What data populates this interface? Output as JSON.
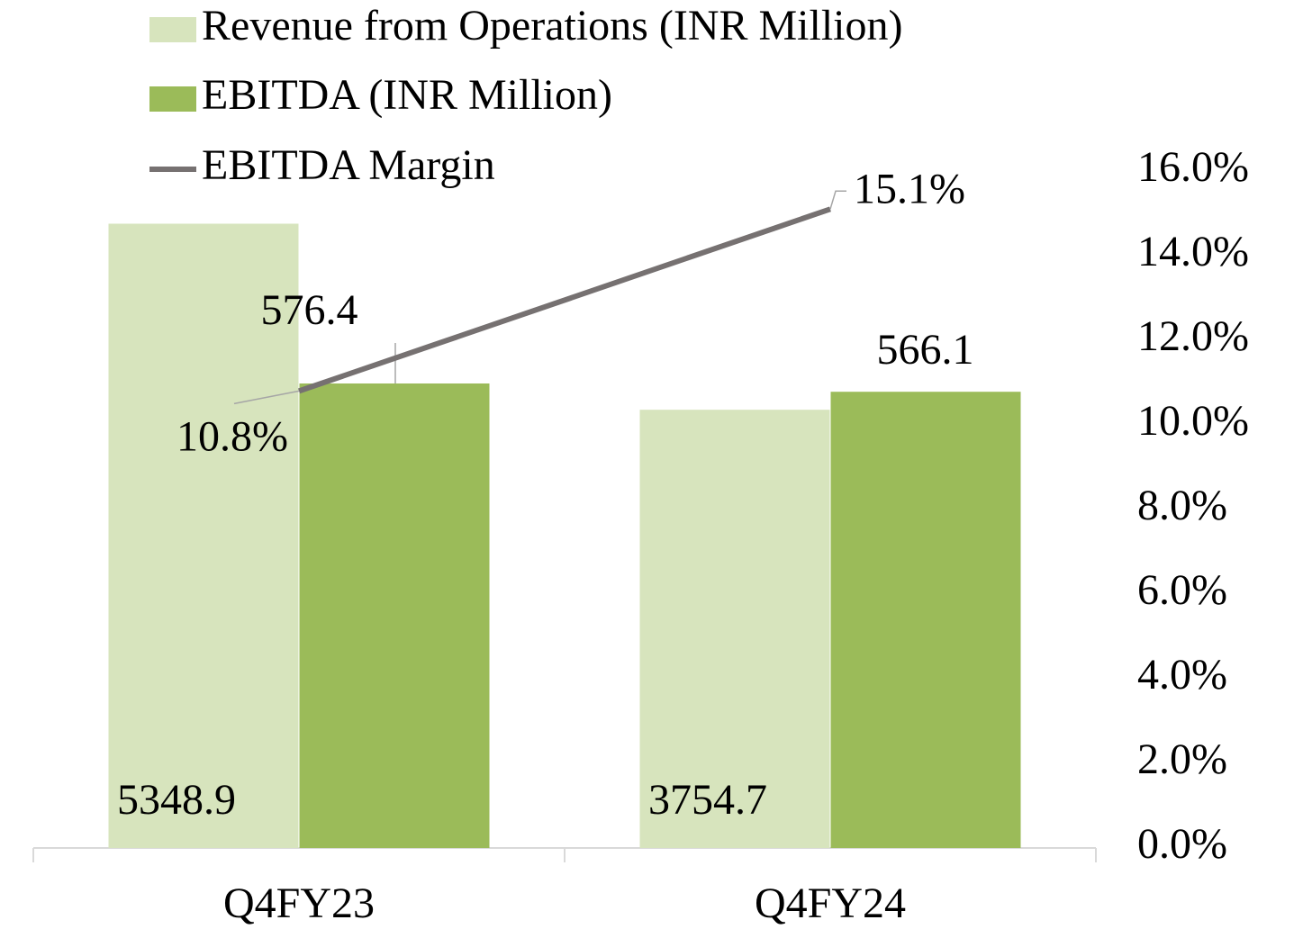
{
  "chart_data": {
    "type": "bar_line",
    "categories": [
      "Q4FY23",
      "Q4FY24"
    ],
    "series": [
      {
        "name": "Revenue from Operations (INR Million)",
        "color": "#d7e4bd",
        "values": [
          5348.9,
          3754.7
        ]
      },
      {
        "name": "EBITDA (INR Million)",
        "color": "#9bbb59",
        "values": [
          576.4,
          566.1
        ],
        "axis": "y3"
      },
      {
        "name": "EBITDA Margin",
        "color": "#767171",
        "values": [
          10.8,
          15.1
        ],
        "value_labels": [
          "10.8%",
          "15.1%"
        ],
        "axis": "y2"
      }
    ],
    "ylim": [
      0,
      5800
    ],
    "y3lim": [
      0,
      840
    ],
    "y2lim": [
      0,
      16
    ],
    "y2ticks": [
      {
        "value": 0,
        "label": "0.0%"
      },
      {
        "value": 2,
        "label": "2.0%"
      },
      {
        "value": 4,
        "label": "4.0%"
      },
      {
        "value": 6,
        "label": "6.0%"
      },
      {
        "value": 8,
        "label": "8.0%"
      },
      {
        "value": 10,
        "label": "10.0%"
      },
      {
        "value": 12,
        "label": "12.0%"
      },
      {
        "value": 14,
        "label": "14.0%"
      },
      {
        "value": 16,
        "label": "16.0%"
      }
    ],
    "legend": "top-left"
  }
}
